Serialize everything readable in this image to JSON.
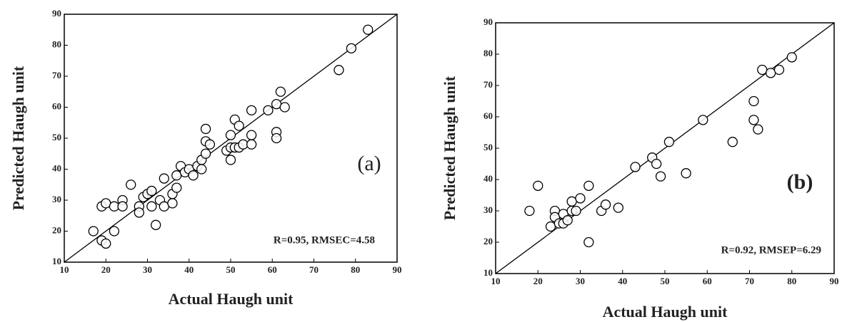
{
  "chart_data": [
    {
      "type": "scatter",
      "color": "#000000",
      "xlabel": "Actual Haugh unit",
      "ylabel": "Predicted Haugh unit",
      "annotations": [
        "(a)",
        "R=0.95, RMSEC=4.58"
      ],
      "xlim": [
        10,
        90
      ],
      "ylim": [
        10,
        90
      ],
      "xticks": [
        10,
        20,
        30,
        40,
        50,
        60,
        70,
        80,
        90
      ],
      "yticks": [
        10,
        20,
        30,
        40,
        50,
        60,
        70,
        80,
        90
      ],
      "x": [
        17,
        19,
        20,
        19,
        20,
        22,
        22,
        24,
        24,
        26,
        28,
        28,
        29,
        30,
        31,
        31,
        32,
        33,
        34,
        34,
        36,
        36,
        37,
        37,
        38,
        39,
        40,
        41,
        42,
        43,
        43,
        44,
        44,
        45,
        44,
        49,
        50,
        50,
        50,
        51,
        51,
        52,
        52,
        53,
        55,
        55,
        55,
        59,
        61,
        61,
        61,
        62,
        63,
        76,
        79,
        83
      ],
      "y": [
        20,
        17,
        16,
        28,
        29,
        28,
        20,
        30,
        28,
        35,
        28,
        26,
        31,
        32,
        33,
        28,
        22,
        30,
        37,
        28,
        29,
        32,
        34,
        38,
        41,
        39,
        40,
        38,
        41,
        43,
        40,
        53,
        49,
        48,
        45,
        46,
        43,
        47,
        51,
        56,
        47,
        47,
        54,
        48,
        59,
        51,
        48,
        59,
        61,
        52,
        50,
        65,
        60,
        72,
        79,
        85
      ]
    },
    {
      "type": "scatter",
      "color": "#000000",
      "xlabel": "Actual Haugh unit",
      "ylabel": "Predicted Haugh unit",
      "annotations": [
        "(b)",
        "R=0.92, RMSEP=6.29"
      ],
      "xlim": [
        10,
        90
      ],
      "ylim": [
        10,
        90
      ],
      "xticks": [
        10,
        20,
        30,
        40,
        50,
        60,
        70,
        80,
        90
      ],
      "yticks": [
        10,
        20,
        30,
        40,
        50,
        60,
        70,
        80,
        90
      ],
      "x": [
        18,
        20,
        23,
        24,
        24,
        25,
        26,
        26,
        27,
        28,
        28,
        29,
        30,
        32,
        32,
        35,
        36,
        39,
        43,
        47,
        48,
        49,
        51,
        55,
        59,
        66,
        71,
        71,
        72,
        73,
        75,
        77,
        80
      ],
      "y": [
        30,
        38,
        25,
        30,
        28,
        26,
        26,
        29,
        27,
        33,
        30,
        30,
        34,
        20,
        38,
        30,
        32,
        31,
        44,
        47,
        45,
        41,
        52,
        42,
        59,
        52,
        65,
        59,
        56,
        75,
        74,
        75,
        79
      ]
    }
  ]
}
